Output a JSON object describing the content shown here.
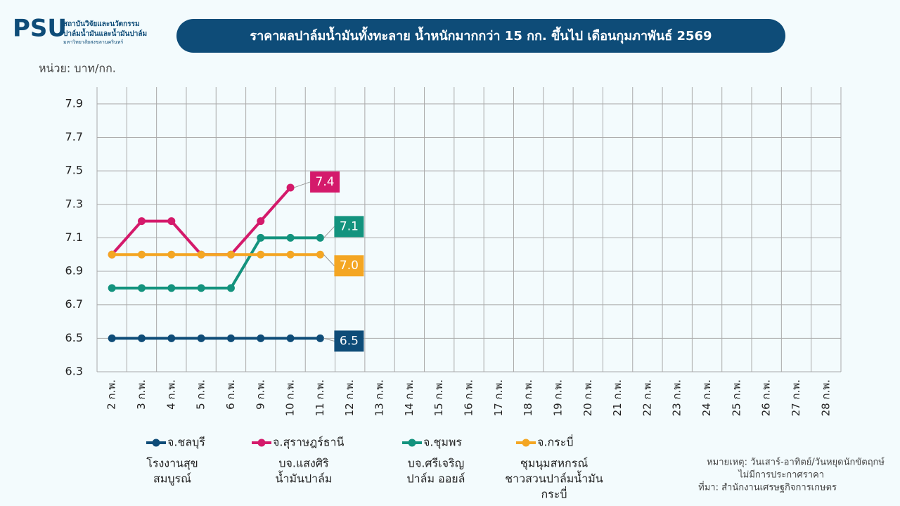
{
  "header": {
    "logo": "PSU",
    "org_lines": [
      "สถาบันวิจัยและนวัตกรรม",
      "ปาล์มน้ำมันและน้ำมันปาล์ม",
      "มหาวิทยาลัยสงขลานครินทร์"
    ]
  },
  "chart_data": {
    "type": "line",
    "title": "ราคาผลปาล์มน้ำมันทั้งทะลาย น้ำหนักมากกว่า 15 กก. ขึ้นไป เดือนกุมภาพันธ์ 2569",
    "unit": "หน่วย: บาท/กก.",
    "categories": [
      "2 ก.พ.",
      "3 ก.พ.",
      "4 ก.พ.",
      "5 ก.พ.",
      "6 ก.พ.",
      "9 ก.พ.",
      "10 ก.พ.",
      "11 ก.พ.",
      "12 ก.พ.",
      "13 ก.พ.",
      "14 ก.พ.",
      "15 ก.พ.",
      "16 ก.พ.",
      "17 ก.พ.",
      "18 ก.พ.",
      "19 ก.พ.",
      "20 ก.พ.",
      "21 ก.พ.",
      "22 ก.พ.",
      "23 ก.พ.",
      "24 ก.พ.",
      "25 ก.พ.",
      "26 ก.พ.",
      "27 ก.พ.",
      "28 ก.พ."
    ],
    "ylim": [
      6.3,
      8.0
    ],
    "yticks": [
      6.3,
      6.5,
      6.7,
      6.9,
      7.1,
      7.3,
      7.5,
      7.7,
      7.9
    ],
    "grid": true,
    "series": [
      {
        "name": "จ.ชลบุรี",
        "source": [
          "โรงงานสุข",
          "สมบูรณ์"
        ],
        "color": "#0e4c78",
        "values": [
          6.5,
          6.5,
          6.5,
          6.5,
          6.5,
          6.5,
          6.5,
          6.5,
          null,
          null,
          null,
          null,
          null,
          null,
          null,
          null,
          null,
          null,
          null,
          null,
          null,
          null,
          null,
          null,
          null
        ],
        "value_labels": [
          null,
          null,
          null,
          null,
          null,
          null,
          null,
          "6.5",
          null,
          null,
          null,
          null,
          null,
          null,
          null,
          null,
          null,
          null,
          null,
          null,
          null,
          null,
          null,
          null,
          null
        ]
      },
      {
        "name": "จ.สุราษฎร์ธานี",
        "source": [
          "บจ.แสงศิริ",
          "น้ำมันปาล์ม"
        ],
        "color": "#d41a6b",
        "values": [
          7.0,
          7.2,
          7.2,
          7.0,
          7.0,
          7.2,
          7.4,
          null,
          null,
          null,
          null,
          null,
          null,
          null,
          null,
          null,
          null,
          null,
          null,
          null,
          null,
          null,
          null,
          null,
          null
        ],
        "value_labels": [
          null,
          null,
          null,
          null,
          null,
          null,
          "7.4",
          null,
          null,
          null,
          null,
          null,
          null,
          null,
          null,
          null,
          null,
          null,
          null,
          null,
          null,
          null,
          null,
          null,
          null
        ]
      },
      {
        "name": "จ.ชุมพร",
        "source": [
          "บจ.ศรีเจริญ",
          "ปาล์ม ออยล์"
        ],
        "color": "#13937e",
        "values": [
          6.8,
          6.8,
          6.8,
          6.8,
          6.8,
          7.1,
          7.1,
          7.1,
          null,
          null,
          null,
          null,
          null,
          null,
          null,
          null,
          null,
          null,
          null,
          null,
          null,
          null,
          null,
          null,
          null
        ],
        "value_labels": [
          null,
          null,
          null,
          null,
          null,
          null,
          null,
          "7.1",
          null,
          null,
          null,
          null,
          null,
          null,
          null,
          null,
          null,
          null,
          null,
          null,
          null,
          null,
          null,
          null,
          null
        ]
      },
      {
        "name": "จ.กระบี่",
        "source": [
          "ชุมนุมสหกรณ์",
          "ชาวสวนปาล์มน้ำมัน",
          "กระบี่"
        ],
        "color": "#f4a623",
        "values": [
          7.0,
          7.0,
          7.0,
          7.0,
          7.0,
          7.0,
          7.0,
          7.0,
          null,
          null,
          null,
          null,
          null,
          null,
          null,
          null,
          null,
          null,
          null,
          null,
          null,
          null,
          null,
          null,
          null
        ],
        "value_labels": [
          null,
          null,
          null,
          null,
          null,
          null,
          null,
          "7.0",
          null,
          null,
          null,
          null,
          null,
          null,
          null,
          null,
          null,
          null,
          null,
          null,
          null,
          null,
          null,
          null,
          null
        ]
      }
    ]
  },
  "notes": [
    "หมายเหตุ: วันเสาร์-อาทิตย์/วันหยุดนักขัตฤกษ์",
    "ไม่มีการประกาศราคา",
    "ที่มา: สำนักงานเศรษฐกิจการเกษตร"
  ]
}
